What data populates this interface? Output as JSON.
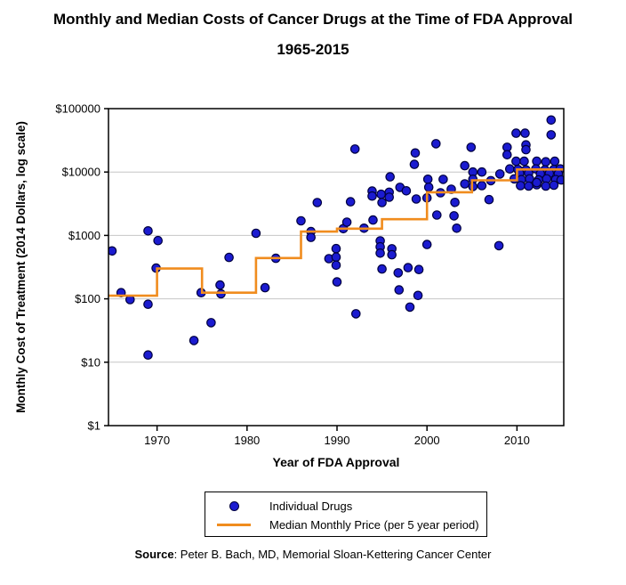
{
  "title": {
    "line1": "Monthly and Median Costs of Cancer Drugs at the Time of FDA Approval",
    "line2": "1965-2015"
  },
  "x_axis": {
    "title": "Year of FDA Approval",
    "tick_values": [
      1970,
      1980,
      1990,
      2000,
      2010
    ],
    "tick_labels": [
      "1970",
      "1980",
      "1990",
      "2000",
      "2010"
    ]
  },
  "y_axis": {
    "title": "Monthly Cost of Treatment (2014 Dollars, log scale)",
    "tick_values": [
      1,
      10,
      100,
      1000,
      10000,
      100000
    ],
    "tick_labels": [
      "$1",
      "$10",
      "$100",
      "$1000",
      "$10000",
      "$100000"
    ]
  },
  "legend": {
    "items": [
      {
        "label": "Individual Drugs",
        "marker": "dot-icon",
        "color": "#1b1bd0"
      },
      {
        "label": "Median Monthly Price (per 5 year period)",
        "marker": "line-icon",
        "color": "#f08c1e"
      }
    ]
  },
  "source": {
    "prefix": "Source",
    "text": ": Peter B. Bach, MD, Memorial Sloan-Kettering Cancer Center"
  },
  "colors": {
    "point_fill": "#1b1bd0",
    "point_stroke": "#00003f",
    "median_line": "#f08c1e",
    "grid": "#c6c6c6",
    "axis": "#000000"
  },
  "chart_data": {
    "type": "scatter",
    "title": "Monthly and Median Costs of Cancer Drugs at the Time of FDA Approval 1965-2015",
    "xlabel": "Year of FDA Approval",
    "ylabel": "Monthly Cost of Treatment (2014 Dollars, log scale)",
    "xlim": [
      1964.6,
      2015.2
    ],
    "ylim": [
      1,
      100000
    ],
    "yscale": "log",
    "grid": "horizontal",
    "legend_position": "bottom",
    "series": [
      {
        "name": "Individual Drugs",
        "type": "scatter",
        "points": [
          [
            1965.0,
            570
          ],
          [
            1966.0,
            125
          ],
          [
            1967.0,
            97
          ],
          [
            1969.0,
            1180
          ],
          [
            1969.0,
            82
          ],
          [
            1969.0,
            13
          ],
          [
            1969.9,
            305
          ],
          [
            1970.1,
            830
          ],
          [
            1974.1,
            22
          ],
          [
            1974.9,
            125
          ],
          [
            1976.0,
            42
          ],
          [
            1977.0,
            165
          ],
          [
            1977.1,
            120
          ],
          [
            1978.0,
            450
          ],
          [
            1981.0,
            1080
          ],
          [
            1982.0,
            150
          ],
          [
            1983.2,
            435
          ],
          [
            1986.0,
            1700
          ],
          [
            1987.1,
            1150
          ],
          [
            1987.1,
            930
          ],
          [
            1987.8,
            3300
          ],
          [
            1989.1,
            430
          ],
          [
            1989.9,
            620
          ],
          [
            1989.9,
            455
          ],
          [
            1989.9,
            340
          ],
          [
            1990.0,
            185
          ],
          [
            1990.7,
            1280
          ],
          [
            1991.1,
            1620
          ],
          [
            1991.5,
            3400
          ],
          [
            1992.0,
            23000
          ],
          [
            1992.1,
            58
          ],
          [
            1993.0,
            1300
          ],
          [
            1993.9,
            5000
          ],
          [
            1993.9,
            4170
          ],
          [
            1994.0,
            1750
          ],
          [
            1994.8,
            820
          ],
          [
            1994.8,
            660
          ],
          [
            1994.8,
            525
          ],
          [
            1994.9,
            4460
          ],
          [
            1995.0,
            295
          ],
          [
            1995.0,
            3300
          ],
          [
            1995.8,
            4800
          ],
          [
            1995.8,
            4000
          ],
          [
            1995.9,
            8400
          ],
          [
            1996.1,
            615
          ],
          [
            1996.1,
            495
          ],
          [
            1996.8,
            257
          ],
          [
            1996.9,
            138
          ],
          [
            1997.0,
            5740
          ],
          [
            1997.7,
            5060
          ],
          [
            1997.9,
            310
          ],
          [
            1998.1,
            74
          ],
          [
            1998.6,
            13200
          ],
          [
            1998.7,
            20000
          ],
          [
            1998.8,
            3750
          ],
          [
            1999.0,
            113
          ],
          [
            1999.1,
            290
          ],
          [
            2000.0,
            3900
          ],
          [
            2000.0,
            720
          ],
          [
            2000.1,
            7700
          ],
          [
            2000.2,
            5750
          ],
          [
            2001.0,
            28000
          ],
          [
            2001.1,
            2100
          ],
          [
            2001.5,
            4700
          ],
          [
            2001.8,
            7660
          ],
          [
            2002.7,
            5350
          ],
          [
            2003.0,
            2040
          ],
          [
            2003.1,
            3320
          ],
          [
            2003.3,
            1300
          ],
          [
            2004.2,
            12600
          ],
          [
            2004.2,
            6500
          ],
          [
            2004.9,
            24600
          ],
          [
            2005.1,
            10000
          ],
          [
            2005.1,
            7700
          ],
          [
            2005.1,
            5900
          ],
          [
            2006.1,
            10000
          ],
          [
            2006.1,
            6100
          ],
          [
            2006.9,
            3670
          ],
          [
            2007.1,
            7300
          ],
          [
            2008.0,
            690
          ],
          [
            2008.1,
            9300
          ],
          [
            2008.9,
            24600
          ],
          [
            2008.9,
            18700
          ],
          [
            2009.2,
            11200
          ],
          [
            2009.9,
            41000
          ],
          [
            2010.9,
            41000
          ],
          [
            2011.0,
            26800
          ],
          [
            2011.0,
            22500
          ],
          [
            2013.8,
            66000
          ],
          [
            2013.8,
            38700
          ],
          [
            2009.9,
            14800
          ],
          [
            2010.8,
            14800
          ],
          [
            2012.2,
            14800
          ],
          [
            2013.2,
            14500
          ],
          [
            2014.2,
            14800
          ],
          [
            2010.1,
            11000
          ],
          [
            2011.0,
            10800
          ],
          [
            2012.1,
            11200
          ],
          [
            2013.1,
            10800
          ],
          [
            2014.1,
            11000
          ],
          [
            2014.8,
            11200
          ],
          [
            2010.3,
            9500
          ],
          [
            2011.3,
            9600
          ],
          [
            2012.6,
            9400
          ],
          [
            2013.6,
            9500
          ],
          [
            2014.6,
            9400
          ],
          [
            2009.7,
            7800
          ],
          [
            2010.5,
            7600
          ],
          [
            2011.4,
            7800
          ],
          [
            2012.4,
            7500
          ],
          [
            2013.3,
            7800
          ],
          [
            2014.3,
            7600
          ],
          [
            2014.9,
            7500
          ],
          [
            2010.4,
            6100
          ],
          [
            2011.3,
            6000
          ],
          [
            2012.2,
            6300
          ],
          [
            2013.2,
            6000
          ],
          [
            2014.1,
            6200
          ],
          [
            2012.2,
            6800
          ]
        ]
      },
      {
        "name": "Median Monthly Price (per 5 year period)",
        "type": "step-line",
        "end_year": 2015.2,
        "breaks": [
          {
            "year": 1964.6,
            "value": 112
          },
          {
            "year": 1970,
            "value": 300
          },
          {
            "year": 1975,
            "value": 125
          },
          {
            "year": 1981,
            "value": 440
          },
          {
            "year": 1986,
            "value": 1150
          },
          {
            "year": 1990,
            "value": 1280
          },
          {
            "year": 1995,
            "value": 1800
          },
          {
            "year": 2000,
            "value": 4800
          },
          {
            "year": 2005,
            "value": 7400
          },
          {
            "year": 2010,
            "value": 11000
          }
        ]
      }
    ]
  }
}
